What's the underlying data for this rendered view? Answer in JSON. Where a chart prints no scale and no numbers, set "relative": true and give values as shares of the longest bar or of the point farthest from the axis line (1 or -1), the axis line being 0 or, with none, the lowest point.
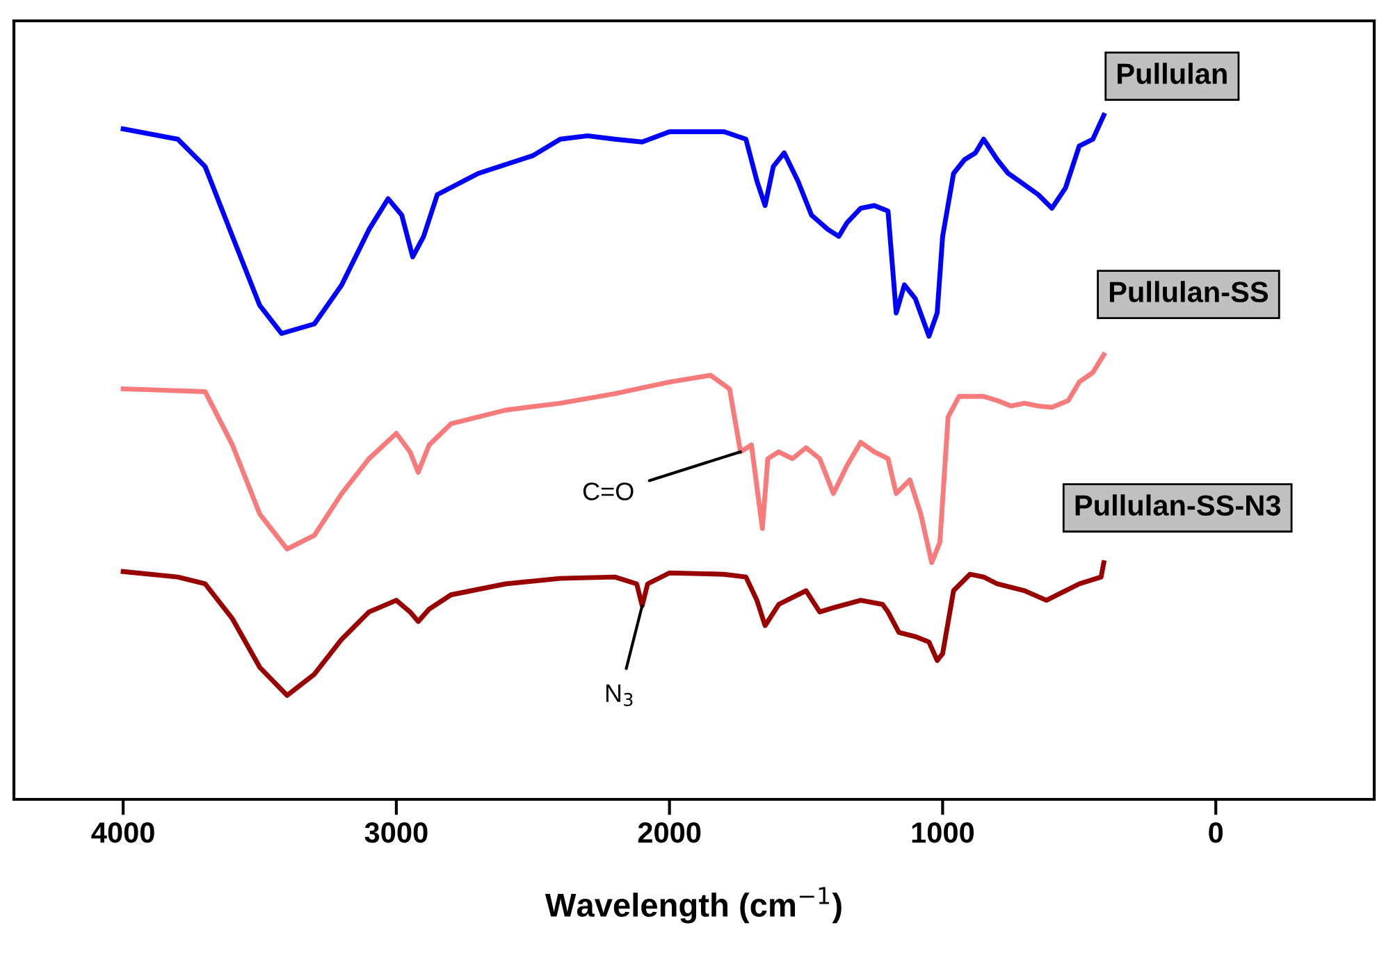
{
  "chart_data": {
    "type": "line",
    "relative": true,
    "xlabel": "Wavelength (cm$^{−1}$)",
    "xlim": [
      4400,
      -580
    ],
    "xticks": [
      4000,
      3000,
      2000,
      1000,
      0
    ],
    "tick_labels": "x",
    "grid": false,
    "legend": false,
    "marker": "none",
    "line_style": "solid",
    "series": [
      {
        "name": "Pullulan",
        "color": "#0000ff",
        "x": [
          4000,
          3800,
          3700,
          3600,
          3500,
          3420,
          3300,
          3200,
          3100,
          3030,
          2980,
          2940,
          2900,
          2850,
          2700,
          2500,
          2400,
          2300,
          2200,
          2100,
          2000,
          1800,
          1720,
          1680,
          1650,
          1620,
          1580,
          1530,
          1480,
          1420,
          1380,
          1350,
          1300,
          1250,
          1200,
          1170,
          1140,
          1100,
          1050,
          1020,
          1000,
          960,
          920,
          880,
          850,
          800,
          760,
          720,
          650,
          600,
          550,
          500,
          450,
          410
        ],
        "values": [
          0.98,
          0.965,
          0.925,
          0.823,
          0.722,
          0.681,
          0.695,
          0.752,
          0.833,
          0.878,
          0.854,
          0.793,
          0.823,
          0.884,
          0.915,
          0.941,
          0.965,
          0.97,
          0.965,
          0.961,
          0.976,
          0.976,
          0.965,
          0.904,
          0.868,
          0.925,
          0.945,
          0.904,
          0.854,
          0.833,
          0.823,
          0.843,
          0.864,
          0.868,
          0.86,
          0.711,
          0.752,
          0.732,
          0.677,
          0.711,
          0.823,
          0.915,
          0.935,
          0.945,
          0.965,
          0.935,
          0.915,
          0.904,
          0.884,
          0.864,
          0.894,
          0.955,
          0.965,
          1
        ]
      },
      {
        "name": "Pullulan-SS",
        "color": "#f77b7b",
        "x": [
          4000,
          3700,
          3600,
          3500,
          3400,
          3300,
          3200,
          3100,
          3000,
          2950,
          2920,
          2880,
          2800,
          2600,
          2400,
          2200,
          2000,
          1850,
          1780,
          1740,
          1700,
          1660,
          1640,
          1600,
          1550,
          1500,
          1450,
          1400,
          1350,
          1300,
          1250,
          1200,
          1170,
          1120,
          1080,
          1040,
          1010,
          980,
          940,
          900,
          850,
          800,
          750,
          700,
          650,
          600,
          540,
          500,
          450,
          410
        ],
        "values": [
          0.6,
          0.596,
          0.518,
          0.417,
          0.366,
          0.386,
          0.447,
          0.498,
          0.535,
          0.508,
          0.478,
          0.518,
          0.549,
          0.569,
          0.579,
          0.593,
          0.61,
          0.62,
          0.6,
          0.508,
          0.518,
          0.396,
          0.498,
          0.508,
          0.498,
          0.514,
          0.498,
          0.447,
          0.488,
          0.522,
          0.508,
          0.498,
          0.447,
          0.467,
          0.417,
          0.346,
          0.376,
          0.559,
          0.589,
          0.589,
          0.589,
          0.583,
          0.575,
          0.579,
          0.575,
          0.573,
          0.583,
          0.61,
          0.624,
          0.65
        ]
      },
      {
        "name": "Pullulan-SS-N3",
        "color": "#990000",
        "x": [
          4000,
          3800,
          3700,
          3600,
          3500,
          3400,
          3300,
          3200,
          3100,
          3000,
          2950,
          2920,
          2880,
          2800,
          2600,
          2400,
          2200,
          2120,
          2100,
          2080,
          2000,
          1800,
          1720,
          1680,
          1650,
          1600,
          1550,
          1500,
          1450,
          1400,
          1300,
          1220,
          1200,
          1160,
          1100,
          1050,
          1020,
          1000,
          960,
          900,
          850,
          800,
          700,
          620,
          550,
          500,
          420,
          410
        ],
        "values": [
          0.333,
          0.325,
          0.315,
          0.264,
          0.193,
          0.152,
          0.183,
          0.234,
          0.274,
          0.291,
          0.274,
          0.26,
          0.278,
          0.299,
          0.315,
          0.323,
          0.325,
          0.315,
          0.283,
          0.315,
          0.331,
          0.329,
          0.325,
          0.291,
          0.254,
          0.285,
          0.295,
          0.305,
          0.274,
          0.28,
          0.291,
          0.285,
          0.274,
          0.244,
          0.238,
          0.23,
          0.203,
          0.213,
          0.305,
          0.329,
          0.325,
          0.315,
          0.305,
          0.291,
          0.305,
          0.315,
          0.325,
          0.346
        ]
      }
    ],
    "annotations": [
      {
        "text": "C=O",
        "x": 1740,
        "y": 0.508
      },
      {
        "text": "N$_{3}$",
        "x": 2100,
        "y": 0.283
      }
    ]
  }
}
